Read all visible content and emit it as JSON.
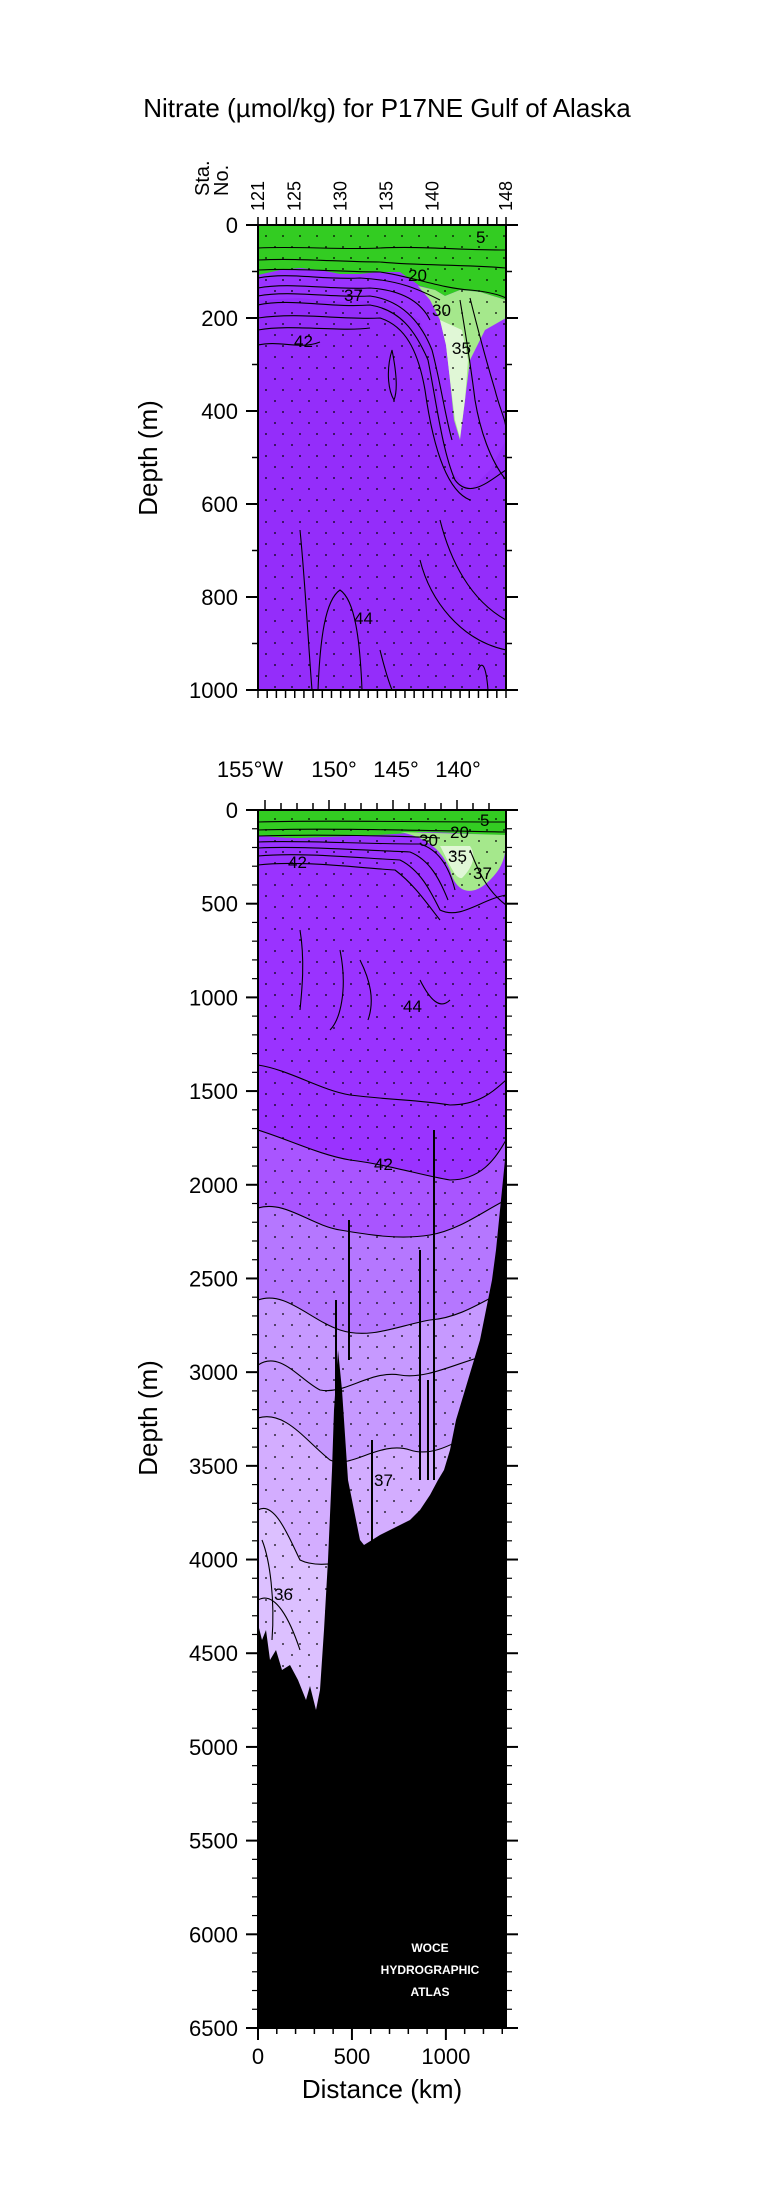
{
  "title": "Nitrate (µmol/kg) for P17NE Gulf of Alaska",
  "colors": {
    "green": "#33cc22",
    "light_green": "#a5e88c",
    "pale_green": "#e0f7d6",
    "purple_deep": "#9a33ff",
    "purple_2": "#a955ff",
    "purple_3": "#b577ff",
    "purple_4": "#c699ff",
    "purple_5": "#dcc0ff",
    "bathymetry": "#000000"
  },
  "chart_data": [
    {
      "type": "heatmap",
      "name": "upper-section",
      "station_axis_label": "Sta.\nNo.",
      "station_label_line1": "Sta.",
      "station_label_line2": "No.",
      "stations": [
        121,
        125,
        130,
        135,
        140,
        148
      ],
      "ylabel": "Depth (m)",
      "ylim": [
        0,
        1000
      ],
      "y_ticks": [
        0,
        200,
        400,
        600,
        800,
        1000
      ],
      "y_tick_labels": [
        "0",
        "200",
        "400",
        "600",
        "800",
        "1000"
      ],
      "contour_labels": [
        "5",
        "20",
        "37",
        "30",
        "42",
        "35",
        "44"
      ]
    },
    {
      "type": "heatmap",
      "name": "full-section",
      "longitude_labels": [
        "155°W",
        "150°",
        "145°",
        "140°"
      ],
      "ylabel": "Depth (m)",
      "xlabel": "Distance (km)",
      "xlim": [
        0,
        1320
      ],
      "ylim": [
        0,
        6500
      ],
      "x_ticks": [
        0,
        500,
        1000
      ],
      "x_tick_labels": [
        "0",
        "500",
        "1000"
      ],
      "y_ticks": [
        0,
        500,
        1000,
        1500,
        2000,
        2500,
        3000,
        3500,
        4000,
        4500,
        5000,
        5500,
        6000,
        6500
      ],
      "y_tick_labels": [
        "0",
        "500",
        "1000",
        "1500",
        "2000",
        "2500",
        "3000",
        "3500",
        "4000",
        "4500",
        "5000",
        "5500",
        "6000",
        "6500"
      ],
      "contour_labels": [
        "5",
        "20",
        "30",
        "35",
        "37",
        "42",
        "44",
        "42",
        "37",
        "36"
      ],
      "bathymetry": {
        "distance_km": [
          0,
          100,
          200,
          260,
          320,
          380,
          400,
          440,
          480,
          520,
          560,
          600,
          700,
          800,
          900,
          1000,
          1100,
          1200,
          1260,
          1300,
          1320
        ],
        "depth_m": [
          4450,
          4550,
          4700,
          4800,
          4300,
          3400,
          3000,
          3300,
          3800,
          4150,
          4200,
          4150,
          4000,
          3800,
          3650,
          3550,
          3300,
          2900,
          2500,
          2000,
          1900
        ]
      }
    }
  ],
  "watermark": [
    "WOCE",
    "HYDROGRAPHIC",
    "ATLAS"
  ]
}
